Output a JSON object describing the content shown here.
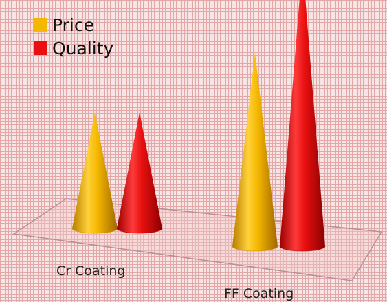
{
  "chart_data": {
    "type": "bar",
    "style": "3d-cone",
    "title": "",
    "xlabel": "",
    "ylabel": "",
    "categories": [
      "Cr Coating",
      "FF Coating"
    ],
    "series": [
      {
        "name": "Price",
        "color": "#f5b800",
        "values": [
          4.5,
          7.5
        ]
      },
      {
        "name": "Quality",
        "color": "#e81010",
        "values": [
          4.5,
          11.0
        ]
      }
    ],
    "ylim": [
      0,
      12
    ],
    "legend": "top-left",
    "grid": false,
    "background_color": "#f4d6d6"
  }
}
